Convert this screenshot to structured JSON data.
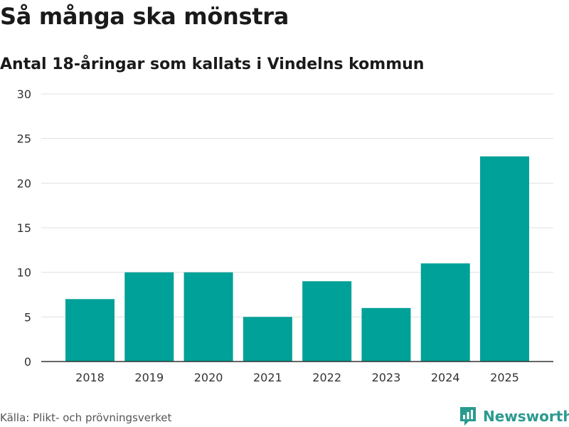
{
  "header": {
    "title": "Så många ska mönstra",
    "subtitle": "Antal 18-åringar som kallats i Vindelns kommun"
  },
  "footer": {
    "source": "Källa: Plikt- och prövningsverket",
    "brand": "Newsworthy"
  },
  "colors": {
    "bar": "#00a198",
    "brand": "#2a9a8e",
    "grid": "#e0e0e0",
    "axis": "#333333"
  },
  "chart_data": {
    "type": "bar",
    "title": "Så många ska mönstra",
    "subtitle": "Antal 18-åringar som kallats i Vindelns kommun",
    "categories": [
      "2018",
      "2019",
      "2020",
      "2021",
      "2022",
      "2023",
      "2024",
      "2025"
    ],
    "values": [
      7,
      10,
      10,
      5,
      9,
      6,
      11,
      23
    ],
    "xlabel": "",
    "ylabel": "",
    "ylim": [
      0,
      30
    ],
    "yticks": [
      0,
      5,
      10,
      15,
      20,
      25,
      30
    ],
    "grid": true,
    "legend": "none"
  }
}
